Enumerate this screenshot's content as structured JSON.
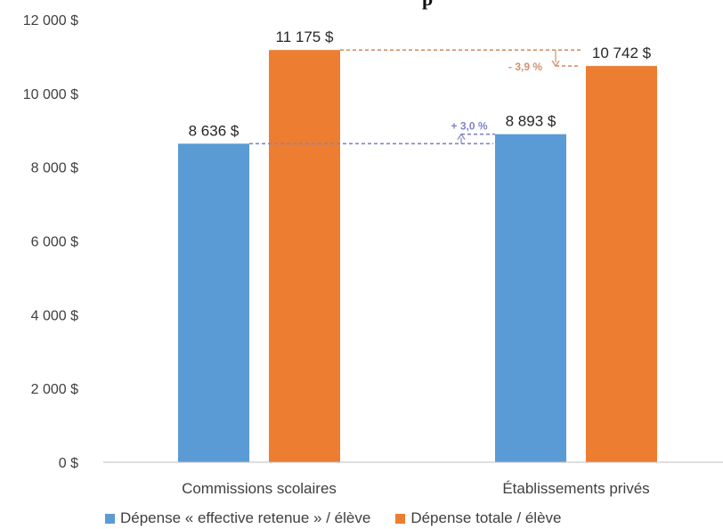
{
  "chart_data": {
    "type": "bar",
    "title_fragment": "p",
    "categories": [
      "Commissions scolaires",
      "Établissements privés"
    ],
    "series": [
      {
        "name": "Dépense « effective retenue » / élève",
        "color": "#5b9bd5",
        "values": [
          8636,
          8893
        ],
        "labels": [
          "8 636 $",
          "8 893 $"
        ]
      },
      {
        "name": "Dépense totale / élève",
        "color": "#ed7d31",
        "values": [
          11175,
          10742
        ],
        "labels": [
          "11 175 $",
          "10 742 $"
        ]
      }
    ],
    "yticks": [
      {
        "value": 0,
        "label": "0 $"
      },
      {
        "value": 2000,
        "label": "2 000 $"
      },
      {
        "value": 4000,
        "label": "4 000 $"
      },
      {
        "value": 6000,
        "label": "6 000 $"
      },
      {
        "value": 8000,
        "label": "8 000 $"
      },
      {
        "value": 10000,
        "label": "10 000 $"
      },
      {
        "value": 12000,
        "label": "12 000 $"
      }
    ],
    "ylim": [
      0,
      12000
    ],
    "grid": false,
    "legend": "bottom",
    "annotations": [
      {
        "text": "+ 3,0 %",
        "series": 0,
        "from": 0,
        "to": 1,
        "color": "#7f86c4"
      },
      {
        "text": "- 3,9 %",
        "series": 1,
        "from": 0,
        "to": 1,
        "color": "#d4906a"
      }
    ]
  }
}
